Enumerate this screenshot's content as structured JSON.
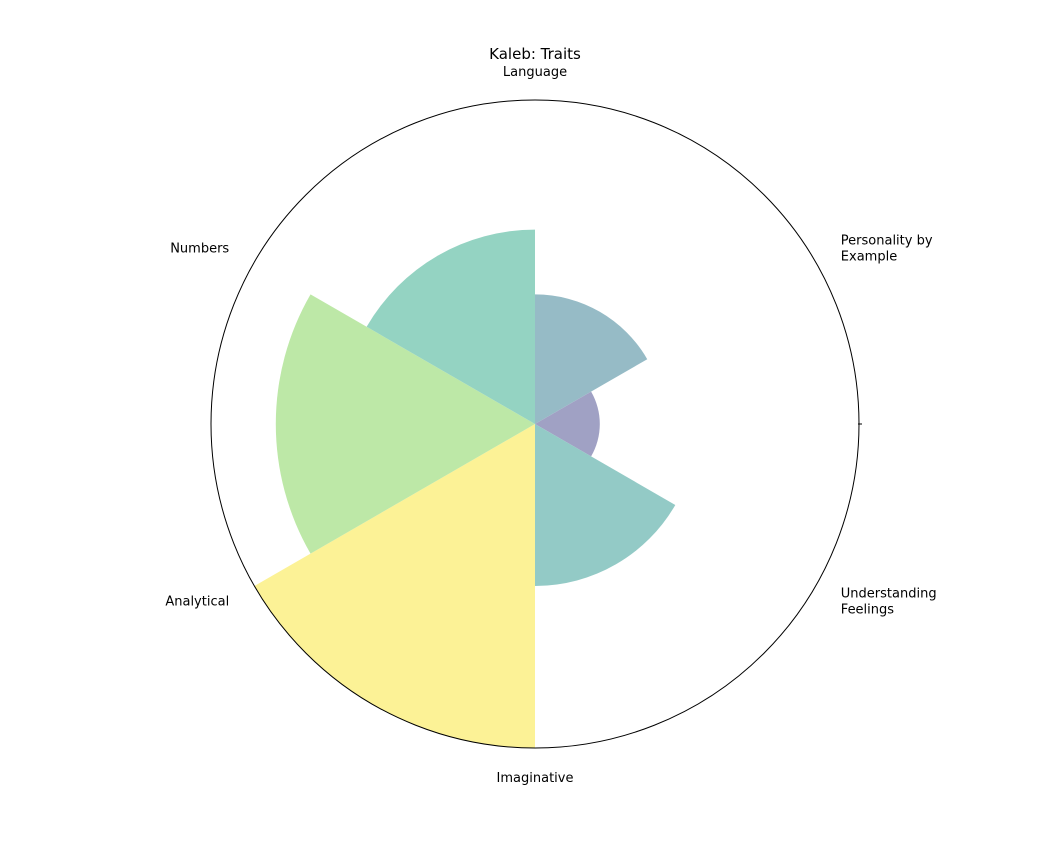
{
  "chart_data": {
    "type": "polar_bar",
    "title": "Kaleb: Traits",
    "categories": [
      [
        "Personality by",
        "Example"
      ],
      [
        "Understanding",
        "Feelings"
      ],
      [
        "Imaginative"
      ],
      [
        "Analytical"
      ],
      [
        "Numbers"
      ],
      [
        "Language"
      ]
    ],
    "values": [
      4,
      2,
      5,
      10,
      8,
      6
    ],
    "rmax": 10,
    "colors": [
      "#96bbc6",
      "#a0a1c4",
      "#93cac6",
      "#fcf296",
      "#bde8a7",
      "#94d3c2"
    ],
    "grid": false,
    "direction": "clockwise",
    "zero_location": "top"
  }
}
